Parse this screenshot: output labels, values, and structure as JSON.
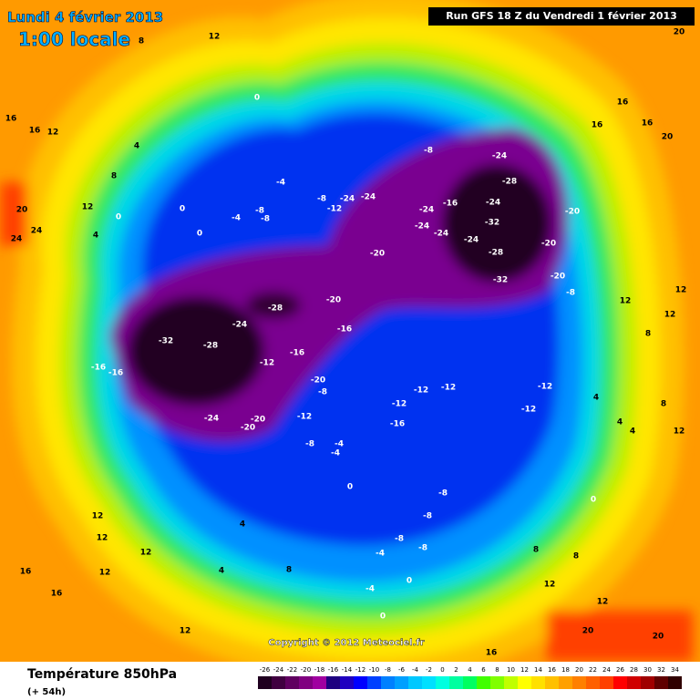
{
  "header": {
    "valid_date": "Lundi 4 février 2013",
    "local_time": "1:00 locale",
    "run": "Run GFS 18 Z du Vendredi 1 février 2013"
  },
  "copyright": "Copyright © 2012 Meteociel.fr",
  "footer": {
    "parameter": "Température 850hPa",
    "lead_time": "(+ 54h)"
  },
  "colorbar": {
    "ticks": [
      -26,
      -24,
      -22,
      -20,
      -18,
      -16,
      -14,
      -12,
      -10,
      -8,
      -6,
      -4,
      -2,
      0,
      2,
      4,
      6,
      8,
      10,
      12,
      14,
      16,
      18,
      20,
      22,
      24,
      26,
      28,
      30,
      32,
      34
    ],
    "colors": [
      "#200020",
      "#400040",
      "#600060",
      "#800080",
      "#a000a0",
      "#1e0080",
      "#2000c0",
      "#0000ff",
      "#0040ff",
      "#0080ff",
      "#00a0ff",
      "#00c8ff",
      "#00e0ff",
      "#00ffe0",
      "#00ffa0",
      "#00ff60",
      "#40ff00",
      "#80ff00",
      "#c0ff00",
      "#ffff00",
      "#ffe000",
      "#ffc000",
      "#ffa000",
      "#ff8000",
      "#ff6000",
      "#ff4000",
      "#ff0000",
      "#d00000",
      "#a00000",
      "#600000",
      "#300000"
    ]
  },
  "map_labels": [
    "16",
    "16",
    "12",
    "8",
    "20",
    "24",
    "24",
    "12",
    "0",
    "4",
    "4",
    "12",
    "8",
    "0",
    "0",
    "0",
    "-4",
    "-4",
    "-8",
    "-8",
    "-8",
    "-12",
    "-24",
    "-24",
    "-8",
    "-24",
    "-28",
    "-24",
    "-16",
    "-24",
    "-24",
    "-24",
    "-24",
    "-32",
    "-20",
    "-20",
    "-20",
    "-28",
    "-20",
    "-32",
    "-8",
    "-28",
    "-20",
    "-24",
    "-16",
    "-32",
    "-28",
    "-16",
    "-16",
    "-16",
    "-12",
    "-20",
    "-8",
    "-12",
    "-12",
    "-12",
    "-12",
    "-12",
    "-16",
    "-24",
    "-20",
    "-20",
    "-12",
    "-8",
    "-4",
    "-4",
    "0",
    "-8",
    "-8",
    "-8",
    "-8",
    "-4",
    "-4",
    "0",
    "0",
    "0",
    "12",
    "12",
    "16",
    "16",
    "16",
    "20",
    "20",
    "12",
    "12",
    "8",
    "4",
    "8",
    "4",
    "4",
    "12",
    "12",
    "12",
    "12",
    "16",
    "16",
    "12",
    "4",
    "4",
    "8",
    "16",
    "20",
    "20",
    "12",
    "12",
    "8",
    "8"
  ]
}
